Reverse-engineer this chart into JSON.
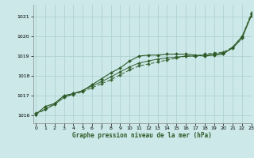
{
  "xlabel": "Graphe pression niveau de la mer (hPa)",
  "x_ticks": [
    0,
    1,
    2,
    3,
    4,
    5,
    6,
    7,
    8,
    9,
    10,
    11,
    12,
    13,
    14,
    15,
    16,
    17,
    18,
    19,
    20,
    21,
    22,
    23
  ],
  "ylim": [
    1015.6,
    1021.6
  ],
  "yticks": [
    1016,
    1017,
    1018,
    1019,
    1020,
    1021
  ],
  "xlim": [
    -0.3,
    23
  ],
  "background_color": "#cce8e8",
  "grid_color": "#aacfcf",
  "line_color": "#2d5a27",
  "line1_x": [
    0,
    1,
    2,
    3,
    4,
    5,
    6,
    7,
    8,
    9,
    10,
    11,
    12,
    13,
    14,
    15,
    16,
    17,
    18,
    19,
    20,
    21,
    22,
    23
  ],
  "line1_y": [
    1016.05,
    1016.45,
    1016.6,
    1017.0,
    1017.1,
    1017.25,
    1017.55,
    1017.85,
    1018.15,
    1018.4,
    1018.75,
    1019.0,
    1019.05,
    1019.05,
    1019.1,
    1019.1,
    1019.1,
    1019.05,
    1019.0,
    1019.05,
    1019.1,
    1019.45,
    1020.0,
    1021.05
  ],
  "line2_x": [
    0,
    1,
    2,
    3,
    4,
    5,
    6,
    7,
    8,
    9,
    10,
    11,
    12,
    13,
    14,
    15,
    16,
    17,
    18,
    19,
    20,
    21,
    22,
    23
  ],
  "line2_y": [
    1016.05,
    1016.3,
    1016.6,
    1016.95,
    1017.05,
    1017.2,
    1017.4,
    1017.6,
    1017.8,
    1018.05,
    1018.3,
    1018.5,
    1018.6,
    1018.7,
    1018.8,
    1018.9,
    1019.0,
    1019.0,
    1019.1,
    1019.15,
    1019.2,
    1019.45,
    1019.95,
    1021.2
  ],
  "line3_x": [
    0,
    1,
    2,
    3,
    4,
    5,
    6,
    7,
    8,
    9,
    10,
    11,
    12,
    13,
    14,
    15,
    16,
    17,
    18,
    19,
    20,
    21,
    22,
    23
  ],
  "line3_y": [
    1016.1,
    1016.3,
    1016.55,
    1016.9,
    1017.1,
    1017.25,
    1017.5,
    1017.7,
    1017.95,
    1018.2,
    1018.45,
    1018.65,
    1018.75,
    1018.85,
    1018.9,
    1018.95,
    1019.0,
    1019.0,
    1019.05,
    1019.1,
    1019.15,
    1019.4,
    1019.9,
    1021.1
  ],
  "marker": "D",
  "marker_size": 2.0,
  "linewidth": 0.8
}
